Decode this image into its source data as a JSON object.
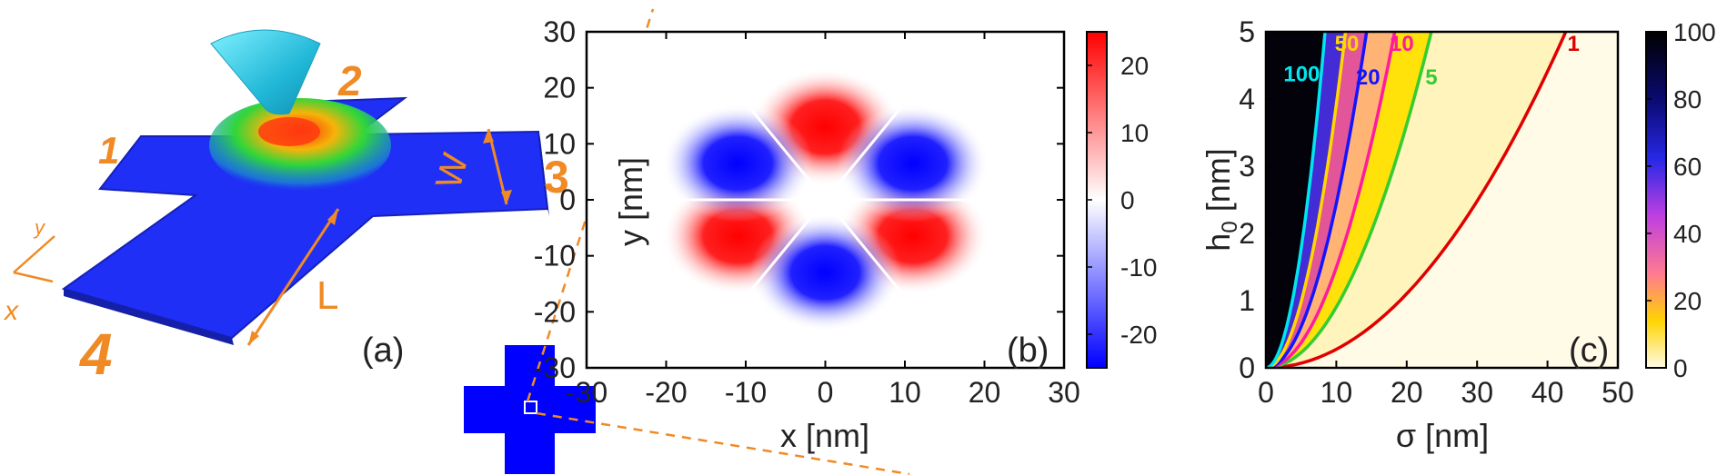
{
  "panel_a": {
    "label": "(a)",
    "arm_labels": [
      "1",
      "2",
      "3",
      "4"
    ],
    "dimension_labels": {
      "width": "W",
      "length": "L"
    },
    "axis_labels": {
      "x": "x",
      "y": "y"
    },
    "colors": {
      "cross": "#1f2ff5",
      "tip": "#2ec4e0",
      "annotation": "#f08a24",
      "bump_top": "#ff3b10",
      "bump_mid": "#28d43a"
    }
  },
  "panel_b": {
    "label": "(b)",
    "xlabel": "x [nm]",
    "ylabel": "y [nm]",
    "xticks": [
      "-30",
      "-20",
      "-10",
      "0",
      "10",
      "20",
      "30"
    ],
    "yticks": [
      "30",
      "20",
      "10",
      "0",
      "-10",
      "-20",
      "-30"
    ],
    "colorbar_ticks": [
      "20",
      "10",
      "0",
      "-10",
      "-20"
    ],
    "colorbar_range": [
      -25,
      25
    ],
    "colors": {
      "positive": "#ff0000",
      "negative": "#0000ff",
      "zero": "#ffffff"
    }
  },
  "panel_c": {
    "label": "(c)",
    "xlabel": "σ [nm]",
    "ylabel_main": "h",
    "ylabel_sub": "0",
    "ylabel_unit": " [nm]",
    "xticks": [
      "0",
      "10",
      "20",
      "30",
      "40",
      "50"
    ],
    "yticks": [
      "5",
      "4",
      "3",
      "2",
      "1",
      "0"
    ],
    "colorbar_ticks": [
      "100",
      "80",
      "60",
      "40",
      "20",
      "0"
    ],
    "contour_labels": [
      {
        "text": "100",
        "color": "#00e5ee"
      },
      {
        "text": "50",
        "color": "#ffd700"
      },
      {
        "text": "10",
        "color": "#ff1aa0"
      },
      {
        "text": "20",
        "color": "#1414ff"
      },
      {
        "text": "5",
        "color": "#33cc33"
      },
      {
        "text": "1",
        "color": "#e00000"
      }
    ]
  },
  "chart_data": [
    {
      "type": "heatmap",
      "title": "",
      "xlabel": "x [nm]",
      "ylabel": "y [nm]",
      "xlim": [
        -30,
        30
      ],
      "ylim": [
        -30,
        30
      ],
      "colorbar_range": [
        -25,
        25
      ],
      "colorbar_ticks": [
        -20,
        -10,
        0,
        10,
        20
      ],
      "description_points": [
        {
          "x": 0,
          "y": 13,
          "value": 24
        },
        {
          "x": 11,
          "y": -6.5,
          "value": 24
        },
        {
          "x": -11,
          "y": -6.5,
          "value": 24
        },
        {
          "x": 0,
          "y": -13,
          "value": -24
        },
        {
          "x": 11,
          "y": 6.5,
          "value": -24
        },
        {
          "x": -11,
          "y": 6.5,
          "value": -24
        }
      ]
    },
    {
      "type": "heatmap",
      "title": "",
      "xlabel": "σ [nm]",
      "ylabel": "h0 [nm]",
      "xlim": [
        0,
        50
      ],
      "ylim": [
        0,
        5
      ],
      "colorbar_range": [
        0,
        100
      ],
      "colorbar_ticks": [
        0,
        20,
        40,
        60,
        80,
        100
      ],
      "series": [
        {
          "name": "1",
          "x": [
            0,
            10,
            20,
            30,
            40,
            42.6
          ],
          "y": [
            0,
            0.28,
            1.1,
            2.48,
            4.4,
            5
          ]
        },
        {
          "name": "5",
          "x": [
            0,
            5,
            10,
            15,
            20,
            23.5
          ],
          "y": [
            0,
            0.23,
            0.9,
            2.04,
            3.62,
            5
          ]
        },
        {
          "name": "10",
          "x": [
            0,
            5,
            10,
            15,
            18.3
          ],
          "y": [
            0,
            0.37,
            1.49,
            3.36,
            5
          ]
        },
        {
          "name": "20",
          "x": [
            0,
            4,
            8,
            12,
            14.3
          ],
          "y": [
            0,
            0.39,
            1.56,
            3.52,
            5
          ]
        },
        {
          "name": "50",
          "x": [
            0,
            3,
            6,
            9,
            11.3
          ],
          "y": [
            0,
            0.35,
            1.41,
            3.17,
            5
          ]
        },
        {
          "name": "100",
          "x": [
            0,
            2,
            4,
            6,
            8.4
          ],
          "y": [
            0,
            0.28,
            1.13,
            2.55,
            5
          ]
        }
      ]
    }
  ]
}
